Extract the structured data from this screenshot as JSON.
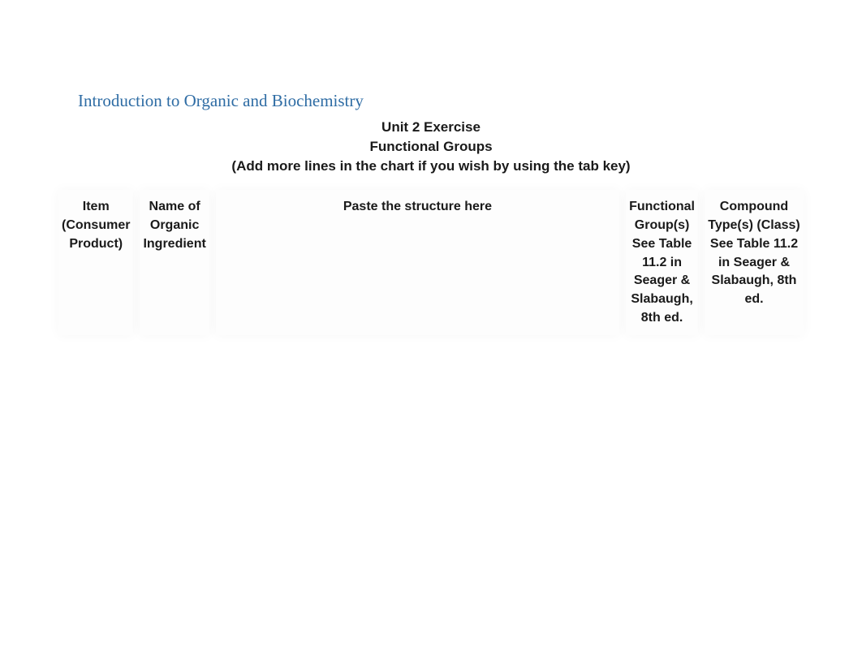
{
  "course": {
    "title": "Introduction to Organic and Biochemistry"
  },
  "exercise": {
    "unit_title": "Unit 2 Exercise",
    "topic": "Functional Groups",
    "instruction": "(Add more lines in the chart if you wish by using the tab key)"
  },
  "table": {
    "columns": [
      {
        "main": "Item (Consumer Product)",
        "note": ""
      },
      {
        "main": "Name of Organic Ingredient",
        "note": ""
      },
      {
        "main": "Paste the structure here",
        "note": ""
      },
      {
        "main": "Functional Group(s)",
        "note": "See Table 11.2 in Seager & Slabaugh, 8th ed."
      },
      {
        "main": "Compound Type(s) (Class)",
        "note": "See Table 11.2 in Seager & Slabaugh, 8th ed."
      }
    ]
  },
  "styling": {
    "title_color": "#2e6ca4",
    "text_color": "#1a1a1a",
    "background_color": "#ffffff",
    "cell_background": "#fdfdfd",
    "title_fontsize": 21,
    "header_fontsize": 17,
    "table_header_fontsize": 16
  }
}
